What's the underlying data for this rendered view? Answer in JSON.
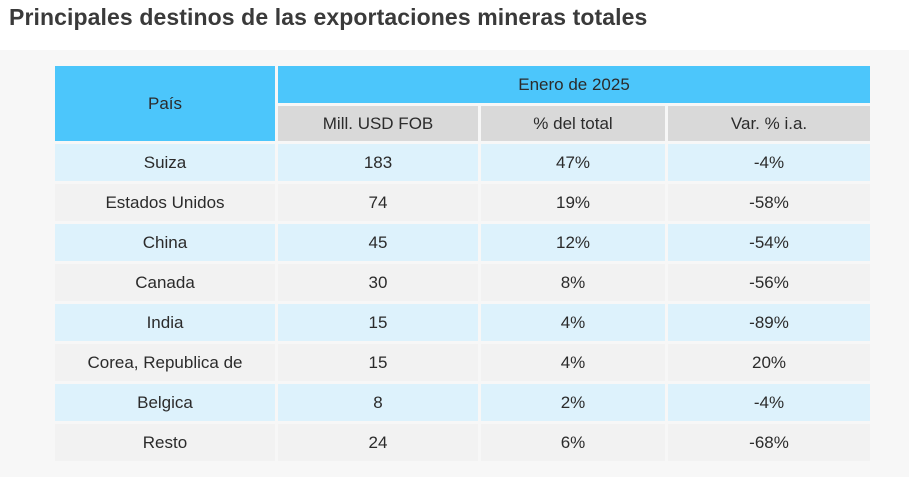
{
  "title": "Principales destinos de las exportaciones mineras totales",
  "table": {
    "country_header": "País",
    "period_header": "Enero de 2025",
    "columns": [
      "Mill. USD FOB",
      "% del total",
      "Var. % i.a."
    ],
    "rows": [
      {
        "country": "Suiza",
        "value": "183",
        "share": "47%",
        "change": "-4%"
      },
      {
        "country": "Estados Unidos",
        "value": "74",
        "share": "19%",
        "change": "-58%"
      },
      {
        "country": "China",
        "value": "45",
        "share": "12%",
        "change": "-54%"
      },
      {
        "country": "Canada",
        "value": "30",
        "share": "8%",
        "change": "-56%"
      },
      {
        "country": "India",
        "value": "15",
        "share": "4%",
        "change": "-89%"
      },
      {
        "country": "Corea, Republica de",
        "value": "15",
        "share": "4%",
        "change": "20%"
      },
      {
        "country": "Belgica",
        "value": "8",
        "share": "2%",
        "change": "-4%"
      },
      {
        "country": "Resto",
        "value": "24",
        "share": "6%",
        "change": "-68%"
      }
    ]
  },
  "colors": {
    "header_blue": "#4cc6fb",
    "subheader_gray": "#d9d9d9",
    "row_light_blue": "#ddf2fc",
    "row_light_gray": "#f2f2f2",
    "title_text": "#3a3a3a"
  }
}
